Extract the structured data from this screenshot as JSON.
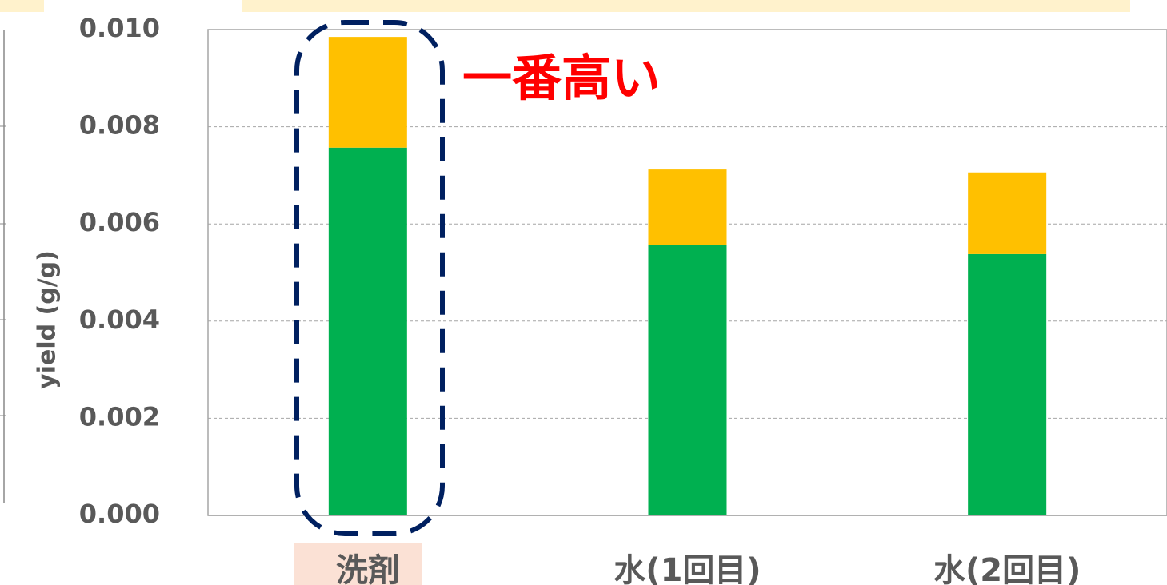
{
  "chart_data": {
    "type": "stacked_bar",
    "y_label": "yield (g/g)",
    "annotation": "一番高い",
    "categories": [
      "洗剤",
      "水(1回目)",
      "水(2回目)"
    ],
    "series": [
      {
        "color": "#00b050",
        "values": [
          0.00757,
          0.00557,
          0.00538
        ]
      },
      {
        "color": "#ffc000",
        "values": [
          0.00228,
          0.00155,
          0.00168
        ]
      }
    ],
    "ylim": [
      0,
      0.01
    ],
    "yticks": [
      {
        "value": 0,
        "label": "0.000"
      },
      {
        "value": 0.002,
        "label": "0.002"
      },
      {
        "value": 0.004,
        "label": "0.004"
      },
      {
        "value": 0.006,
        "label": "0.006"
      },
      {
        "value": 0.008,
        "label": "0.008"
      },
      {
        "value": 0.01,
        "label": "0.010"
      }
    ],
    "grid": true
  }
}
